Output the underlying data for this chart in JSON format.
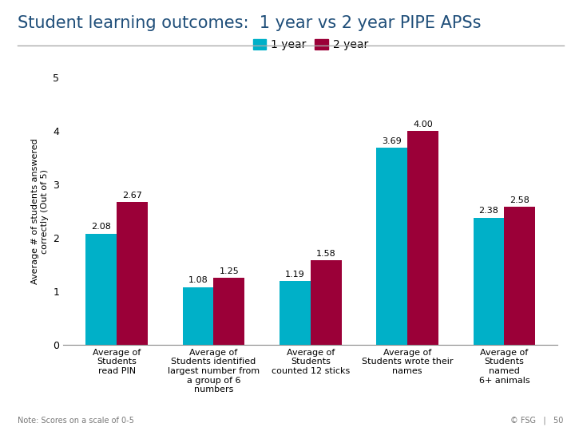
{
  "title": "Student learning outcomes:  1 year vs 2 year PIPE APSs",
  "ylabel": "Average # of students answered\ncorrectly (Out of 5)",
  "categories": [
    "Average of\nStudents\nread PIN",
    "Average of\nStudents identified\nlargest number from\na group of 6\nnumbers",
    "Average of\nStudents\ncounted 12 sticks",
    "Average of\nStudents wrote their\nnames",
    "Average of\nStudents\nnamed\n6+ animals"
  ],
  "values_1year": [
    2.08,
    1.08,
    1.19,
    3.69,
    2.38
  ],
  "values_2year": [
    2.67,
    1.25,
    1.58,
    4.0,
    2.58
  ],
  "color_1year": "#00B0C8",
  "color_2year": "#9B0038",
  "ylim": [
    0,
    5
  ],
  "yticks": [
    0,
    1,
    2,
    3,
    4,
    5
  ],
  "bar_width": 0.32,
  "legend_labels": [
    "1 year",
    "2 year"
  ],
  "note": "Note: Scores on a scale of 0-5",
  "footer": "© FSG   |   50",
  "title_color": "#1F4E79",
  "background_color": "#FFFFFF",
  "title_fontsize": 15,
  "label_fontsize": 8,
  "axis_fontsize": 9,
  "value_label_fontsize": 8
}
